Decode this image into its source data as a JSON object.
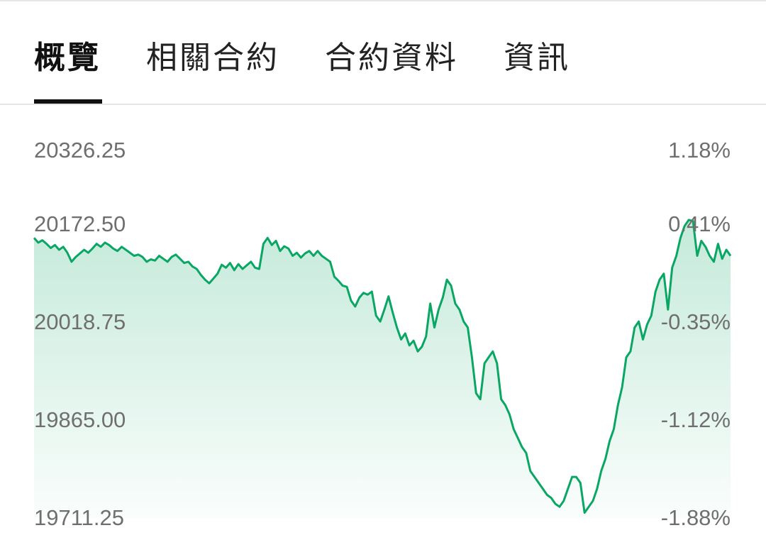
{
  "tabs": [
    {
      "label": "概覽",
      "active": true
    },
    {
      "label": "相關合約",
      "active": false
    },
    {
      "label": "合約資料",
      "active": false
    },
    {
      "label": "資訊",
      "active": false
    }
  ],
  "colors": {
    "line": "#0aa664",
    "fill": "#0aa664",
    "label": "#6f6f6f",
    "tab_indicator": "#111111"
  },
  "chart_data": {
    "type": "area",
    "ylim": [
      19711.25,
      20326.25
    ],
    "y_ticks_left": [
      "20326.25",
      "20172.50",
      "20018.75",
      "19865.00",
      "19711.25"
    ],
    "y_ticks_right": [
      "1.18%",
      "0.41%",
      "-0.35%",
      "-1.12%",
      "-1.88%"
    ],
    "n_points": 168,
    "values": [
      20180,
      20172,
      20176,
      20170,
      20163,
      20168,
      20160,
      20165,
      20155,
      20140,
      20148,
      20154,
      20160,
      20155,
      20162,
      20170,
      20165,
      20172,
      20168,
      20162,
      20158,
      20165,
      20160,
      20155,
      20150,
      20152,
      20148,
      20140,
      20144,
      20142,
      20150,
      20145,
      20140,
      20148,
      20152,
      20145,
      20138,
      20140,
      20132,
      20128,
      20118,
      20110,
      20104,
      20112,
      20120,
      20135,
      20130,
      20138,
      20126,
      20136,
      20128,
      20134,
      20140,
      20130,
      20128,
      20170,
      20180,
      20168,
      20175,
      20158,
      20166,
      20162,
      20150,
      20155,
      20147,
      20154,
      20158,
      20150,
      20158,
      20150,
      20145,
      20140,
      20115,
      20108,
      20100,
      20098,
      20075,
      20065,
      20080,
      20088,
      20085,
      20090,
      20050,
      20040,
      20060,
      20082,
      20055,
      20030,
      20010,
      20020,
      20000,
      20008,
      19990,
      19998,
      20015,
      20070,
      20030,
      20060,
      20080,
      20110,
      20100,
      20070,
      20060,
      20040,
      20030,
      19980,
      19920,
      19910,
      19970,
      19980,
      19990,
      19970,
      19910,
      19900,
      19885,
      19860,
      19845,
      19830,
      19820,
      19790,
      19780,
      19770,
      19760,
      19750,
      19745,
      19735,
      19730,
      19740,
      19760,
      19780,
      19780,
      19770,
      19720,
      19730,
      19740,
      19760,
      19790,
      19810,
      19840,
      19860,
      19900,
      19930,
      19980,
      19990,
      20030,
      20040,
      20010,
      20035,
      20050,
      20090,
      20110,
      20120,
      20060,
      20130,
      20150,
      20180,
      20200,
      20210,
      20208,
      20150,
      20175,
      20165,
      20150,
      20140,
      20170,
      20145,
      20160,
      20150
    ]
  }
}
